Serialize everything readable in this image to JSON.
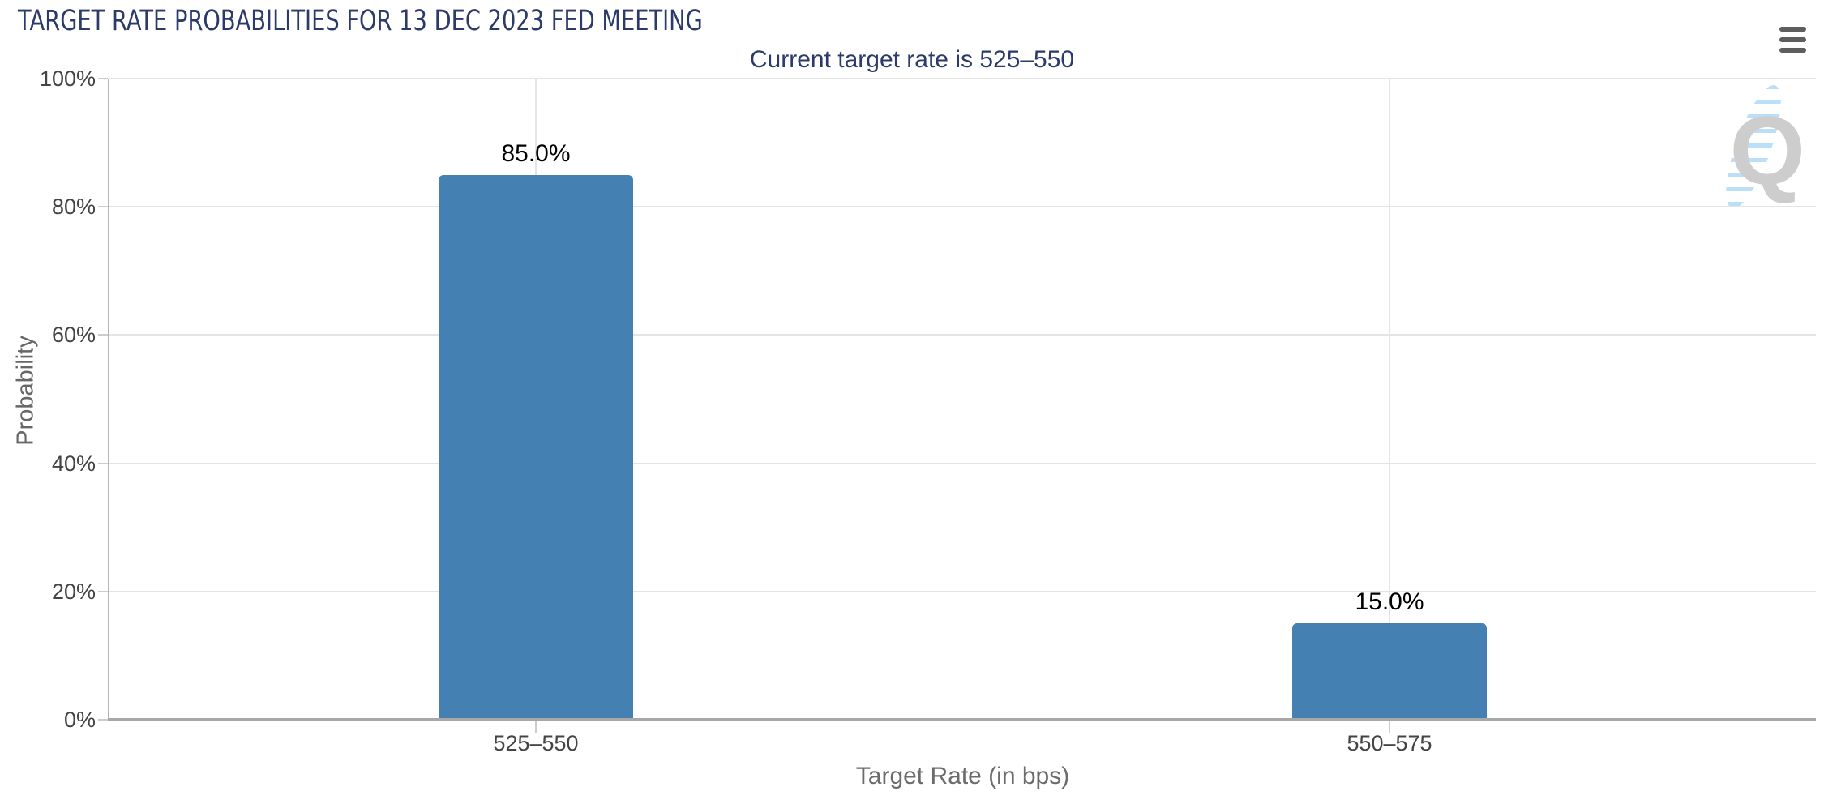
{
  "header": {
    "menu_icon": "hamburger-menu-icon"
  },
  "chart_data": {
    "type": "bar",
    "title": "TARGET RATE PROBABILITIES FOR 13 DEC 2023 FED MEETING",
    "subtitle": "Current target rate is 525–550",
    "categories": [
      "525–550",
      "550–575"
    ],
    "values": [
      85.0,
      15.0
    ],
    "value_labels": [
      "85.0%",
      "15.0%"
    ],
    "xlabel": "Target Rate (in bps)",
    "ylabel": "Probability",
    "ylim": [
      0,
      100
    ],
    "yticks": [
      {
        "value": 0,
        "label": "0%"
      },
      {
        "value": 20,
        "label": "20%"
      },
      {
        "value": 40,
        "label": "40%"
      },
      {
        "value": 60,
        "label": "60%"
      },
      {
        "value": 80,
        "label": "80%"
      },
      {
        "value": 100,
        "label": "100%"
      }
    ],
    "grid": true,
    "legend": "none",
    "bar_color": "#4480b2"
  },
  "watermark": {
    "letter": "Q"
  },
  "colors": {
    "title_navy": "#2c3a6a",
    "bar_blue": "#4480b2",
    "grid_gray": "#e4e4e4",
    "axis_gray": "#a8a8a8",
    "tick_label_gray": "#444444",
    "menu_icon_gray": "#5d5e60",
    "watermark_gray": "#cbcbcb",
    "watermark_blue": "#b8def6"
  }
}
